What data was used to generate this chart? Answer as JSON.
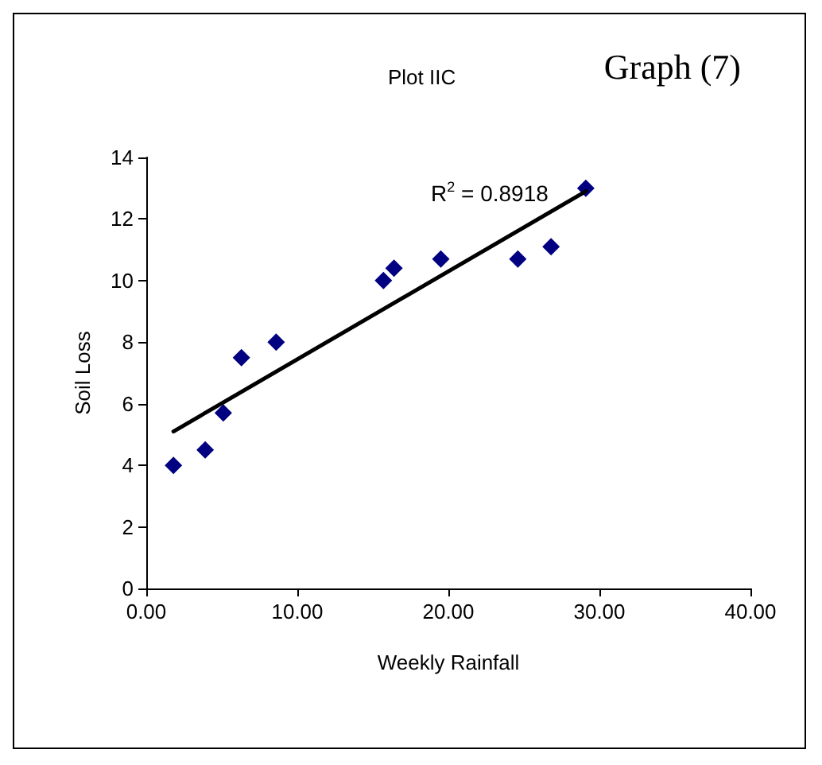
{
  "chart_data": {
    "type": "scatter",
    "title": "Plot IIC",
    "xlabel": "Weekly Rainfall",
    "ylabel": "Soil Loss",
    "annotations": [
      "Graph (7)",
      "R$^{2}$ = 0.8918"
    ],
    "xlim": [
      0,
      40
    ],
    "xticks": [
      {
        "value": 0,
        "label": "0.00"
      },
      {
        "value": 10,
        "label": "10.00"
      },
      {
        "value": 20,
        "label": "20.00"
      },
      {
        "value": 30,
        "label": "30.00"
      },
      {
        "value": 40,
        "label": "40.00"
      }
    ],
    "ylim": [
      0,
      14
    ],
    "yticks": [
      0,
      2,
      4,
      6,
      8,
      10,
      12,
      14
    ],
    "grid": false,
    "marker": "diamond",
    "series": [
      {
        "color": "#000080",
        "x": [
          1.8,
          3.9,
          5.1,
          6.3,
          8.6,
          15.7,
          16.4,
          19.5,
          24.6,
          26.8,
          29.1
        ],
        "values": [
          4.0,
          4.5,
          5.7,
          7.5,
          8.0,
          10.0,
          10.4,
          10.7,
          10.7,
          11.1,
          13.0
        ]
      },
      {
        "type": "line",
        "color": "#000000",
        "marker": "none",
        "line_style": "solid",
        "x": [
          1.8,
          29.1
        ],
        "values": [
          5.1,
          12.9
        ]
      }
    ]
  }
}
